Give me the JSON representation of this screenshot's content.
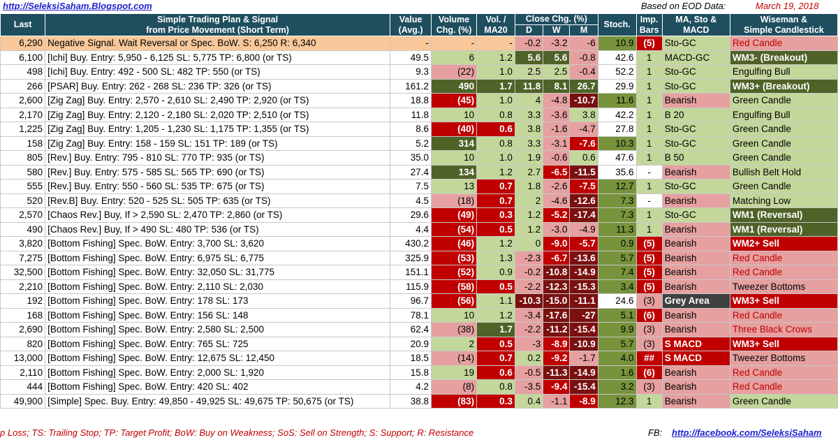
{
  "header": {
    "site": "http://SeleksiSaham.Blogspot.com",
    "eod_label": "Based on EOD Data:",
    "date": "March 19, 2018"
  },
  "columns": {
    "last": "Last",
    "plan_line1": "Simple Trading Plan & Signal",
    "plan_line2": "from Price Movement (Short Term)",
    "value_line1": "Value",
    "value_line2": "(Avg.)",
    "volume_line1": "Volume",
    "volume_line2": "Chg. (%)",
    "vol_line1": "Vol. /",
    "vol_line2": "MA20",
    "close_chg": "Close Chg. (%)",
    "d": "D",
    "w": "W",
    "m": "M",
    "stoch": "Stoch.",
    "imp_line1": "Imp.",
    "imp_line2": "Bars",
    "ma_line1": "MA, Sto &",
    "ma_line2": "MACD",
    "wise_line1": "Wiseman  &",
    "wise_line2": "Simple Candlestick"
  },
  "colors": {
    "header_bg": "#1f4e5f",
    "dark_green": "#4f6228",
    "mid_green": "#77933c",
    "light_green": "#c4d79b",
    "light_red": "#e6a0a0",
    "red": "#c00000",
    "dark_red": "#7a1010",
    "dark_grey": "#404040",
    "highlight": "#f8c89a"
  },
  "rows": [
    {
      "last": "6,290",
      "plan": "Negative Signal.  Wait Reversal or Spec. BoW.  S:  6,250  R:  6,340",
      "value": "-",
      "volume": "-",
      "vol": "-",
      "d": "-0.2",
      "w": "-3.2",
      "m": "-6",
      "stoch": "10.9",
      "imp": "(5)",
      "ma": "Sto-GC",
      "wise": "Red Candle"
    },
    {
      "last": "6,100",
      "plan": "[Ichi] Buy.  Entry:  5,950 -  6,125  SL:  5,775  TP:  6,800  (or TS)",
      "value": "49.5",
      "volume": "6",
      "vol": "1.2",
      "d": "5.6",
      "w": "5.6",
      "m": "-0.8",
      "stoch": "42.6",
      "imp": "1",
      "ma": "MACD-GC",
      "wise": "WM3- (Breakout)"
    },
    {
      "last": "498",
      "plan": "[Ichi] Buy.  Entry:   492 -   500  SL:   482  TP:   550  (or TS)",
      "value": "9.3",
      "volume": "(22)",
      "vol": "1.0",
      "d": "2.5",
      "w": "2.5",
      "m": "-0.4",
      "stoch": "52.2",
      "imp": "1",
      "ma": "Sto-GC",
      "wise": "Engulfing Bull"
    },
    {
      "last": "266",
      "plan": "[PSAR] Buy.  Entry:   262 -   268  SL:   236  TP:   326  (or TS)",
      "value": "161.2",
      "volume": "490",
      "vol": "1.7",
      "d": "11.8",
      "w": "8.1",
      "m": "26.7",
      "stoch": "29.9",
      "imp": "1",
      "ma": "Sto-GC",
      "wise": "WM3+ (Breakout)"
    },
    {
      "last": "2,600",
      "plan": "[Zig Zag] Buy.  Entry:  2,570 -  2,610  SL:  2,490  TP:  2,920  (or TS)",
      "value": "18.8",
      "volume": "(45)",
      "vol": "1.0",
      "d": "4",
      "w": "-4.8",
      "m": "-10.7",
      "stoch": "11.6",
      "imp": "1",
      "ma": "Bearish",
      "wise": "Green Candle"
    },
    {
      "last": "2,170",
      "plan": "[Zig Zag] Buy.  Entry:  2,120 -  2,180  SL:  2,020  TP:  2,510  (or TS)",
      "value": "11.8",
      "volume": "10",
      "vol": "0.8",
      "d": "3.3",
      "w": "-3.6",
      "m": "3.8",
      "stoch": "42.2",
      "imp": "1",
      "ma": "B 20",
      "wise": "Engulfing Bull"
    },
    {
      "last": "1,225",
      "plan": "[Zig Zag] Buy.  Entry:  1,205 -  1,230  SL:  1,175  TP:  1,355  (or TS)",
      "value": "8.6",
      "volume": "(40)",
      "vol": "0.6",
      "d": "3.8",
      "w": "-1.6",
      "m": "-4.7",
      "stoch": "27.8",
      "imp": "1",
      "ma": "Sto-GC",
      "wise": "Green Candle"
    },
    {
      "last": "158",
      "plan": "[Zig Zag] Buy.  Entry:   158 -   159  SL:   151  TP:   189  (or TS)",
      "value": "5.2",
      "volume": "314",
      "vol": "0.8",
      "d": "3.3",
      "w": "-3.1",
      "m": "-7.6",
      "stoch": "10.3",
      "imp": "1",
      "ma": "Sto-GC",
      "wise": "Green Candle"
    },
    {
      "last": "805",
      "plan": "[Rev.] Buy.  Entry:   795 -   810  SL:   770  TP:   935  (or TS)",
      "value": "35.0",
      "volume": "10",
      "vol": "1.0",
      "d": "1.9",
      "w": "-0.6",
      "m": "0.6",
      "stoch": "47.6",
      "imp": "1",
      "ma": "B 50",
      "wise": "Green Candle"
    },
    {
      "last": "580",
      "plan": "[Rev.] Buy.  Entry:   575 -   585  SL:   565  TP:   690  (or TS)",
      "value": "27.4",
      "volume": "134",
      "vol": "1.2",
      "d": "2.7",
      "w": "-6.5",
      "m": "-11.5",
      "stoch": "35.6",
      "imp": "-",
      "ma": "Bearish",
      "wise": "Bullish Belt Hold"
    },
    {
      "last": "555",
      "plan": "[Rev.] Buy.  Entry:   550 -   560  SL:   535  TP:   675  (or TS)",
      "value": "7.5",
      "volume": "13",
      "vol": "0.7",
      "d": "1.8",
      "w": "-2.6",
      "m": "-7.5",
      "stoch": "12.7",
      "imp": "1",
      "ma": "Sto-GC",
      "wise": "Green Candle"
    },
    {
      "last": "520",
      "plan": "[Rev.B] Buy.  Entry:   520 -   525  SL:   505  TP:   635  (or TS)",
      "value": "4.5",
      "volume": "(18)",
      "vol": "0.7",
      "d": "2",
      "w": "-4.6",
      "m": "-12.6",
      "stoch": "7.3",
      "imp": "-",
      "ma": "Bearish",
      "wise": "Matching Low"
    },
    {
      "last": "2,570",
      "plan": "[Chaos Rev.] Buy, If >  2,590  SL:  2,470  TP:  2,860  (or TS)",
      "value": "29.6",
      "volume": "(49)",
      "vol": "0.3",
      "d": "1.2",
      "w": "-5.2",
      "m": "-17.4",
      "stoch": "7.3",
      "imp": "1",
      "ma": "Sto-GC",
      "wise": "WM1 (Reversal)"
    },
    {
      "last": "490",
      "plan": "[Chaos Rev.] Buy, If >   490  SL:   480  TP:   536  (or TS)",
      "value": "4.4",
      "volume": "(54)",
      "vol": "0.5",
      "d": "1.2",
      "w": "-3.0",
      "m": "-4.9",
      "stoch": "11.3",
      "imp": "1",
      "ma": "Bearish",
      "wise": "WM1 (Reversal)"
    },
    {
      "last": "3,820",
      "plan": "[Bottom Fishing]  Spec. BoW.  Entry:  3,700  SL:  3,620",
      "value": "430.2",
      "volume": "(46)",
      "vol": "1.2",
      "d": "0",
      "w": "-9.0",
      "m": "-5.7",
      "stoch": "0.9",
      "imp": "(5)",
      "ma": "Bearish",
      "wise": "WM2+ Sell"
    },
    {
      "last": "7,275",
      "plan": "[Bottom Fishing]  Spec. BoW.  Entry:  6,975  SL:  6,775",
      "value": "325.9",
      "volume": "(53)",
      "vol": "1.3",
      "d": "-2.3",
      "w": "-6.7",
      "m": "-13.6",
      "stoch": "5.7",
      "imp": "(5)",
      "ma": "Bearish",
      "wise": "Red Candle"
    },
    {
      "last": "32,500",
      "plan": "[Bottom Fishing]  Spec. BoW.  Entry:  32,050  SL:  31,775",
      "value": "151.1",
      "volume": "(52)",
      "vol": "0.9",
      "d": "-0.2",
      "w": "-10.8",
      "m": "-14.9",
      "stoch": "7.4",
      "imp": "(5)",
      "ma": "Bearish",
      "wise": "Red Candle"
    },
    {
      "last": "2,210",
      "plan": "[Bottom Fishing]  Spec. BoW.  Entry:  2,110  SL:  2,030",
      "value": "115.9",
      "volume": "(58)",
      "vol": "0.5",
      "d": "-2.2",
      "w": "-12.3",
      "m": "-15.3",
      "stoch": "3.4",
      "imp": "(5)",
      "ma": "Bearish",
      "wise": "Tweezer Bottoms"
    },
    {
      "last": "192",
      "plan": "[Bottom Fishing]  Spec. BoW.  Entry:   178  SL:   173",
      "value": "96.7",
      "volume": "(56)",
      "vol": "1.1",
      "d": "-10.3",
      "w": "-15.0",
      "m": "-11.1",
      "stoch": "24.6",
      "imp": "(3)",
      "ma": "Grey Area",
      "wise": "WM3+ Sell"
    },
    {
      "last": "168",
      "plan": "[Bottom Fishing]  Spec. BoW.  Entry:   156  SL:   148",
      "value": "78.1",
      "volume": "10",
      "vol": "1.2",
      "d": "-3.4",
      "w": "-17.6",
      "m": "-27",
      "stoch": "5.1",
      "imp": "(6)",
      "ma": "Bearish",
      "wise": "Red Candle"
    },
    {
      "last": "2,690",
      "plan": "[Bottom Fishing]  Spec. BoW.  Entry:  2,580  SL:  2,500",
      "value": "62.4",
      "volume": "(38)",
      "vol": "1.7",
      "d": "-2.2",
      "w": "-11.2",
      "m": "-15.4",
      "stoch": "9.9",
      "imp": "(3)",
      "ma": "Bearish",
      "wise": "Three Black Crows"
    },
    {
      "last": "820",
      "plan": "[Bottom Fishing]  Spec. BoW.  Entry:   765  SL:   725",
      "value": "20.9",
      "volume": "2",
      "vol": "0.5",
      "d": "-3",
      "w": "-8.9",
      "m": "-10.9",
      "stoch": "5.7",
      "imp": "(3)",
      "ma": "S MACD",
      "wise": "WM3+ Sell"
    },
    {
      "last": "13,000",
      "plan": "[Bottom Fishing]  Spec. BoW.  Entry:  12,675  SL:  12,450",
      "value": "18.5",
      "volume": "(14)",
      "vol": "0.7",
      "d": "0.2",
      "w": "-9.2",
      "m": "-1.7",
      "stoch": "4.0",
      "imp": "##",
      "ma": "S MACD",
      "wise": "Tweezer Bottoms"
    },
    {
      "last": "2,110",
      "plan": "[Bottom Fishing]  Spec. BoW.  Entry:  2,000  SL:  1,920",
      "value": "15.8",
      "volume": "19",
      "vol": "0.6",
      "d": "-0.5",
      "w": "-11.3",
      "m": "-14.9",
      "stoch": "1.6",
      "imp": "(6)",
      "ma": "Bearish",
      "wise": "Red Candle"
    },
    {
      "last": "444",
      "plan": "[Bottom Fishing]  Spec. BoW.  Entry:   420  SL:   402",
      "value": "4.2",
      "volume": "(8)",
      "vol": "0.8",
      "d": "-3.5",
      "w": "-9.4",
      "m": "-15.4",
      "stoch": "3.2",
      "imp": "(3)",
      "ma": "Bearish",
      "wise": "Red Candle"
    },
    {
      "last": "49,900",
      "plan": "[Simple]  Spec. Buy.  Entry:  49,850 - 49,925  SL:  49,675  TP:  50,675  (or TS)",
      "value": "38.8",
      "volume": "(83)",
      "vol": "0.3",
      "d": "0.4",
      "w": "-1.1",
      "m": "-8.9",
      "stoch": "12.3",
      "imp": "1",
      "ma": "Bearish",
      "wise": "Green Candle"
    }
  ],
  "footer": {
    "legend": "p Loss; TS: Trailing Stop; TP: Target Profit; BoW: Buy on Weakness; SoS: Sell on Strength; S: Support; R: Resistance",
    "fb_label": "FB:",
    "fb_link": "http://facebook.com/SeleksiSaham"
  }
}
